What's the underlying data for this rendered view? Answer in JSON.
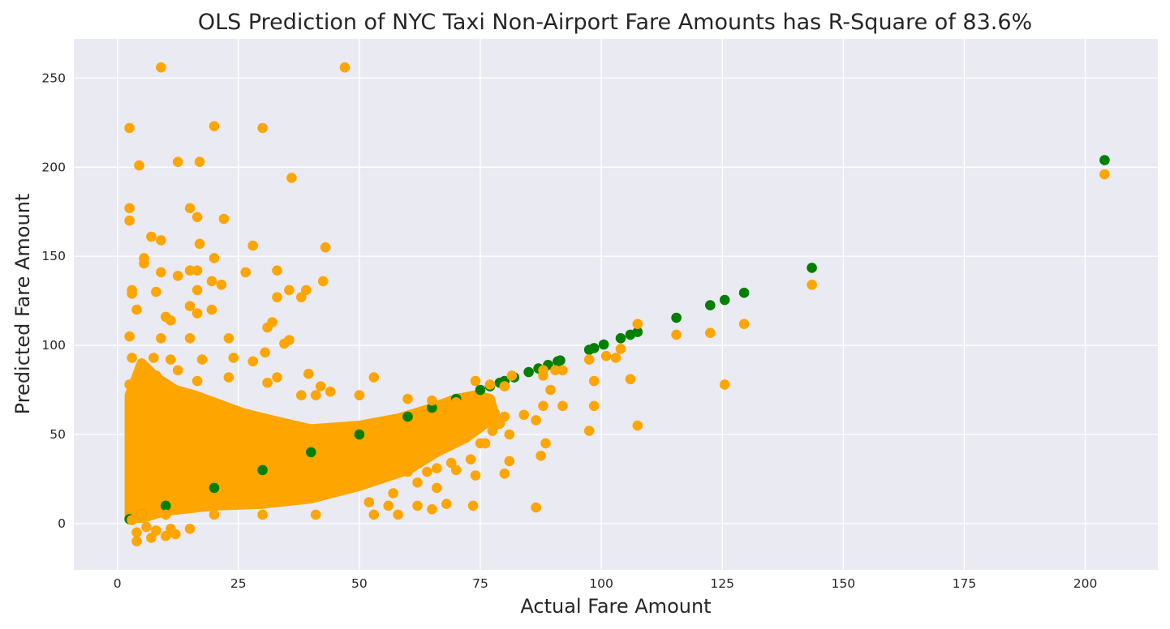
{
  "chart_data": {
    "type": "scatter",
    "title": "OLS Prediction of NYC Taxi Non-Airport Fare Amounts has R-Square of 83.6%",
    "xlabel": "Actual Fare Amount",
    "ylabel": "Predicted Fare Amount",
    "xlim": [
      -9,
      215
    ],
    "ylim": [
      -26,
      272
    ],
    "x_ticks": [
      0,
      25,
      50,
      75,
      100,
      125,
      150,
      175,
      200
    ],
    "y_ticks": [
      0,
      50,
      100,
      150,
      200,
      250
    ],
    "grid": true,
    "legend": "none",
    "colors": {
      "background": "#eaeaf2",
      "actual_series": "#008000",
      "predicted_series": "#ffa500",
      "text": "#262626"
    },
    "series": [
      {
        "color": "#008000",
        "points": [
          [
            2.5,
            2.5
          ],
          [
            5,
            5
          ],
          [
            10,
            10
          ],
          [
            20,
            20
          ],
          [
            30,
            30
          ],
          [
            40,
            40
          ],
          [
            50,
            50
          ],
          [
            60,
            60
          ],
          [
            65,
            65
          ],
          [
            70,
            70
          ],
          [
            75,
            75
          ],
          [
            77,
            77
          ],
          [
            79,
            79
          ],
          [
            80,
            80
          ],
          [
            82,
            82
          ],
          [
            85,
            85
          ],
          [
            87,
            87
          ],
          [
            89,
            89
          ],
          [
            91,
            91
          ],
          [
            91.5,
            91.5
          ],
          [
            97.5,
            97.5
          ],
          [
            98.5,
            98.5
          ],
          [
            100.5,
            100.5
          ],
          [
            104,
            104
          ],
          [
            106,
            106
          ],
          [
            107.5,
            107.5
          ],
          [
            115.5,
            115.5
          ],
          [
            122.5,
            122.5
          ],
          [
            125.5,
            125.5
          ],
          [
            129.5,
            129.5
          ],
          [
            143.5,
            143.5
          ],
          [
            204,
            204
          ]
        ]
      },
      {
        "color": "#ffa500",
        "points": [
          [
            9,
            256
          ],
          [
            47,
            256
          ],
          [
            2.5,
            222
          ],
          [
            20,
            223
          ],
          [
            30,
            222
          ],
          [
            4.5,
            201
          ],
          [
            12.5,
            203
          ],
          [
            17,
            203
          ],
          [
            36,
            194
          ],
          [
            2.5,
            177
          ],
          [
            2.5,
            170
          ],
          [
            15,
            177
          ],
          [
            16.5,
            172
          ],
          [
            22,
            171
          ],
          [
            7,
            161
          ],
          [
            9,
            159
          ],
          [
            17,
            157
          ],
          [
            28,
            156
          ],
          [
            43,
            155
          ],
          [
            5.5,
            149
          ],
          [
            5.5,
            146
          ],
          [
            20,
            149
          ],
          [
            9,
            141
          ],
          [
            15,
            142
          ],
          [
            16.5,
            142
          ],
          [
            26.5,
            141
          ],
          [
            33,
            142
          ],
          [
            3,
            131
          ],
          [
            3,
            129
          ],
          [
            8,
            130
          ],
          [
            16.5,
            131
          ],
          [
            12.5,
            139
          ],
          [
            21.5,
            134
          ],
          [
            19.5,
            136
          ],
          [
            35.5,
            131
          ],
          [
            39,
            131
          ],
          [
            33,
            127
          ],
          [
            38,
            127
          ],
          [
            42.5,
            136
          ],
          [
            4,
            120
          ],
          [
            15,
            122
          ],
          [
            16.5,
            118
          ],
          [
            19.5,
            120
          ],
          [
            32,
            113
          ],
          [
            31,
            110
          ],
          [
            10,
            116
          ],
          [
            11,
            114
          ],
          [
            2.5,
            105
          ],
          [
            9,
            104
          ],
          [
            15,
            104
          ],
          [
            23,
            104
          ],
          [
            34.5,
            101
          ],
          [
            35.5,
            103
          ],
          [
            3,
            93
          ],
          [
            7.5,
            93
          ],
          [
            11,
            92
          ],
          [
            17.5,
            92
          ],
          [
            24,
            93
          ],
          [
            28,
            91
          ],
          [
            30.5,
            96
          ],
          [
            39.5,
            84
          ],
          [
            33,
            82
          ],
          [
            53,
            82
          ],
          [
            4,
            80
          ],
          [
            2.5,
            78
          ],
          [
            8,
            83
          ],
          [
            12.5,
            86
          ],
          [
            16.5,
            80
          ],
          [
            23,
            82
          ],
          [
            31,
            79
          ],
          [
            42,
            77
          ],
          [
            44,
            74
          ],
          [
            38,
            72
          ],
          [
            41,
            72
          ],
          [
            50,
            72
          ],
          [
            60,
            70
          ],
          [
            65,
            69
          ],
          [
            70,
            68
          ],
          [
            74,
            68
          ],
          [
            74,
            80
          ],
          [
            77,
            78
          ],
          [
            80,
            77
          ],
          [
            81.5,
            83
          ],
          [
            88,
            86
          ],
          [
            88,
            83
          ],
          [
            90.5,
            86
          ],
          [
            92,
            86
          ],
          [
            78,
            62
          ],
          [
            80,
            60
          ],
          [
            84,
            61
          ],
          [
            88,
            66
          ],
          [
            89.5,
            75
          ],
          [
            92,
            66
          ],
          [
            97.5,
            92
          ],
          [
            98.5,
            80
          ],
          [
            98.5,
            66
          ],
          [
            97.5,
            52
          ],
          [
            101,
            94
          ],
          [
            103,
            93
          ],
          [
            104,
            98
          ],
          [
            106,
            81
          ],
          [
            107.5,
            112
          ],
          [
            107.5,
            55
          ],
          [
            115.5,
            106
          ],
          [
            122.5,
            107
          ],
          [
            125.5,
            78
          ],
          [
            129.5,
            112
          ],
          [
            143.5,
            134
          ],
          [
            204,
            196
          ],
          [
            86.5,
            58
          ],
          [
            87.5,
            38
          ],
          [
            88.5,
            45
          ],
          [
            86.5,
            9
          ],
          [
            81,
            50
          ],
          [
            81,
            35
          ],
          [
            80,
            28
          ],
          [
            73.5,
            10
          ],
          [
            74,
            27
          ],
          [
            70,
            30
          ],
          [
            69,
            34
          ],
          [
            73,
            36
          ],
          [
            75,
            45
          ],
          [
            76,
            45
          ],
          [
            77.5,
            52
          ],
          [
            78,
            55
          ],
          [
            79,
            56
          ],
          [
            69,
            46
          ],
          [
            70,
            50
          ],
          [
            68,
            11
          ],
          [
            66,
            20
          ],
          [
            65,
            8
          ],
          [
            62,
            10
          ],
          [
            58,
            5
          ],
          [
            57,
            17
          ],
          [
            56,
            10
          ],
          [
            52,
            12
          ],
          [
            53,
            5
          ],
          [
            41,
            5
          ],
          [
            30,
            5
          ],
          [
            20,
            5
          ],
          [
            10,
            5
          ],
          [
            5,
            5
          ],
          [
            3,
            2
          ],
          [
            4,
            -5
          ],
          [
            4,
            -10
          ],
          [
            7,
            -8
          ],
          [
            10,
            -7
          ],
          [
            12,
            -6
          ],
          [
            11,
            -3
          ],
          [
            15,
            -3
          ],
          [
            6,
            -2
          ],
          [
            8,
            -4
          ],
          [
            60,
            29
          ],
          [
            62,
            23
          ],
          [
            64,
            29
          ],
          [
            66,
            31
          ]
        ]
      }
    ]
  }
}
